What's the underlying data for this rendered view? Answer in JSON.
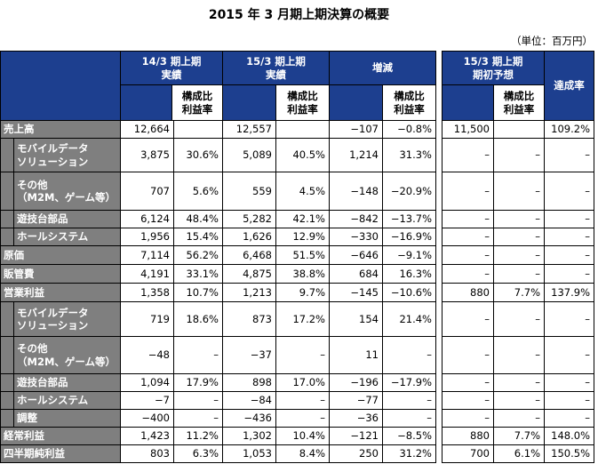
{
  "title": "2015 年 3 月期上期決算の概要",
  "unit": "（単位：百万円）",
  "header": {
    "groups": [
      [
        "14/3 期上期",
        "実績"
      ],
      [
        "15/3 期上期",
        "実績"
      ],
      [
        "増減"
      ],
      [
        "15/3 期上期",
        "期初予想"
      ]
    ],
    "achievement": "達成率",
    "sub": [
      "構成比",
      "利益率"
    ]
  },
  "rows": [
    {
      "label": [
        "売上高"
      ],
      "cells": [
        "12,664",
        null,
        "12,557",
        null,
        "−107",
        "−0.8%",
        "11,500",
        null,
        "109.2%"
      ]
    },
    {
      "label": [
        "モバイルデータ",
        "ソリューション"
      ],
      "indent": true,
      "cells": [
        "3,875",
        "30.6%",
        "5,089",
        "40.5%",
        "1,214",
        "31.3%",
        "–",
        "–",
        "–"
      ]
    },
    {
      "label": [
        "その他",
        "（M2M、ゲーム等）"
      ],
      "indent": true,
      "cells": [
        "707",
        "5.6%",
        "559",
        "4.5%",
        "−148",
        "−20.9%",
        "–",
        "–",
        "–"
      ]
    },
    {
      "label": [
        "遊技台部品"
      ],
      "indent": true,
      "cells": [
        "6,124",
        "48.4%",
        "5,282",
        "42.1%",
        "−842",
        "−13.7%",
        "–",
        "–",
        "–"
      ]
    },
    {
      "label": [
        "ホールシステム"
      ],
      "indent": true,
      "cells": [
        "1,956",
        "15.4%",
        "1,626",
        "12.9%",
        "−330",
        "−16.9%",
        "–",
        "–",
        "–"
      ]
    },
    {
      "label": [
        "原価"
      ],
      "cells": [
        "7,114",
        "56.2%",
        "6,468",
        "51.5%",
        "−646",
        "−9.1%",
        "–",
        "–",
        "–"
      ]
    },
    {
      "label": [
        "販管費"
      ],
      "cells": [
        "4,191",
        "33.1%",
        "4,875",
        "38.8%",
        "684",
        "16.3%",
        "–",
        "–",
        "–"
      ]
    },
    {
      "label": [
        "営業利益"
      ],
      "cells": [
        "1,358",
        "10.7%",
        "1,213",
        "9.7%",
        "−145",
        "−10.6%",
        "880",
        "7.7%",
        "137.9%"
      ]
    },
    {
      "label": [
        "モバイルデータ",
        "ソリューション"
      ],
      "indent": true,
      "cells": [
        "719",
        "18.6%",
        "873",
        "17.2%",
        "154",
        "21.4%",
        "–",
        "–",
        "–"
      ]
    },
    {
      "label": [
        "その他",
        "（M2M、ゲーム等）"
      ],
      "indent": true,
      "cells": [
        "−48",
        "–",
        "−37",
        "–",
        "11",
        "–",
        "–",
        "–",
        "–"
      ]
    },
    {
      "label": [
        "遊技台部品"
      ],
      "indent": true,
      "cells": [
        "1,094",
        "17.9%",
        "898",
        "17.0%",
        "−196",
        "−17.9%",
        "–",
        "–",
        "–"
      ]
    },
    {
      "label": [
        "ホールシステム"
      ],
      "indent": true,
      "cells": [
        "−7",
        "–",
        "−84",
        "–",
        "−77",
        "–",
        "–",
        "–",
        "–"
      ]
    },
    {
      "label": [
        "調整"
      ],
      "indent": true,
      "cells": [
        "−400",
        "–",
        "−436",
        "–",
        "−36",
        "–",
        "–",
        "–",
        "–"
      ]
    },
    {
      "label": [
        "経常利益"
      ],
      "cells": [
        "1,423",
        "11.2%",
        "1,302",
        "10.4%",
        "−121",
        "−8.5%",
        "880",
        "7.7%",
        "148.0%"
      ]
    },
    {
      "label": [
        "四半期純利益"
      ],
      "cells": [
        "803",
        "6.3%",
        "1,053",
        "8.4%",
        "250",
        "31.2%",
        "700",
        "6.1%",
        "150.5%"
      ]
    }
  ]
}
